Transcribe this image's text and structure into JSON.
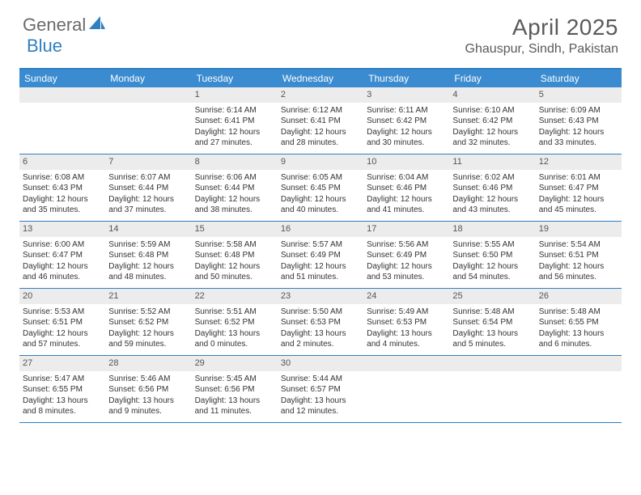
{
  "logo": {
    "text_general": "General",
    "text_blue": "Blue"
  },
  "title": "April 2025",
  "location": "Ghauspur, Sindh, Pakistan",
  "colors": {
    "header_bar": "#3a8bd0",
    "border": "#2f7fc2",
    "daynum_bg": "#ececec",
    "text": "#333333",
    "logo_gray": "#6a6a6a",
    "logo_blue": "#2f7fc2"
  },
  "days_of_week": [
    "Sunday",
    "Monday",
    "Tuesday",
    "Wednesday",
    "Thursday",
    "Friday",
    "Saturday"
  ],
  "weeks": [
    [
      {
        "n": "",
        "sr": "",
        "ss": "",
        "dl": ""
      },
      {
        "n": "",
        "sr": "",
        "ss": "",
        "dl": ""
      },
      {
        "n": "1",
        "sr": "Sunrise: 6:14 AM",
        "ss": "Sunset: 6:41 PM",
        "dl": "Daylight: 12 hours and 27 minutes."
      },
      {
        "n": "2",
        "sr": "Sunrise: 6:12 AM",
        "ss": "Sunset: 6:41 PM",
        "dl": "Daylight: 12 hours and 28 minutes."
      },
      {
        "n": "3",
        "sr": "Sunrise: 6:11 AM",
        "ss": "Sunset: 6:42 PM",
        "dl": "Daylight: 12 hours and 30 minutes."
      },
      {
        "n": "4",
        "sr": "Sunrise: 6:10 AM",
        "ss": "Sunset: 6:42 PM",
        "dl": "Daylight: 12 hours and 32 minutes."
      },
      {
        "n": "5",
        "sr": "Sunrise: 6:09 AM",
        "ss": "Sunset: 6:43 PM",
        "dl": "Daylight: 12 hours and 33 minutes."
      }
    ],
    [
      {
        "n": "6",
        "sr": "Sunrise: 6:08 AM",
        "ss": "Sunset: 6:43 PM",
        "dl": "Daylight: 12 hours and 35 minutes."
      },
      {
        "n": "7",
        "sr": "Sunrise: 6:07 AM",
        "ss": "Sunset: 6:44 PM",
        "dl": "Daylight: 12 hours and 37 minutes."
      },
      {
        "n": "8",
        "sr": "Sunrise: 6:06 AM",
        "ss": "Sunset: 6:44 PM",
        "dl": "Daylight: 12 hours and 38 minutes."
      },
      {
        "n": "9",
        "sr": "Sunrise: 6:05 AM",
        "ss": "Sunset: 6:45 PM",
        "dl": "Daylight: 12 hours and 40 minutes."
      },
      {
        "n": "10",
        "sr": "Sunrise: 6:04 AM",
        "ss": "Sunset: 6:46 PM",
        "dl": "Daylight: 12 hours and 41 minutes."
      },
      {
        "n": "11",
        "sr": "Sunrise: 6:02 AM",
        "ss": "Sunset: 6:46 PM",
        "dl": "Daylight: 12 hours and 43 minutes."
      },
      {
        "n": "12",
        "sr": "Sunrise: 6:01 AM",
        "ss": "Sunset: 6:47 PM",
        "dl": "Daylight: 12 hours and 45 minutes."
      }
    ],
    [
      {
        "n": "13",
        "sr": "Sunrise: 6:00 AM",
        "ss": "Sunset: 6:47 PM",
        "dl": "Daylight: 12 hours and 46 minutes."
      },
      {
        "n": "14",
        "sr": "Sunrise: 5:59 AM",
        "ss": "Sunset: 6:48 PM",
        "dl": "Daylight: 12 hours and 48 minutes."
      },
      {
        "n": "15",
        "sr": "Sunrise: 5:58 AM",
        "ss": "Sunset: 6:48 PM",
        "dl": "Daylight: 12 hours and 50 minutes."
      },
      {
        "n": "16",
        "sr": "Sunrise: 5:57 AM",
        "ss": "Sunset: 6:49 PM",
        "dl": "Daylight: 12 hours and 51 minutes."
      },
      {
        "n": "17",
        "sr": "Sunrise: 5:56 AM",
        "ss": "Sunset: 6:49 PM",
        "dl": "Daylight: 12 hours and 53 minutes."
      },
      {
        "n": "18",
        "sr": "Sunrise: 5:55 AM",
        "ss": "Sunset: 6:50 PM",
        "dl": "Daylight: 12 hours and 54 minutes."
      },
      {
        "n": "19",
        "sr": "Sunrise: 5:54 AM",
        "ss": "Sunset: 6:51 PM",
        "dl": "Daylight: 12 hours and 56 minutes."
      }
    ],
    [
      {
        "n": "20",
        "sr": "Sunrise: 5:53 AM",
        "ss": "Sunset: 6:51 PM",
        "dl": "Daylight: 12 hours and 57 minutes."
      },
      {
        "n": "21",
        "sr": "Sunrise: 5:52 AM",
        "ss": "Sunset: 6:52 PM",
        "dl": "Daylight: 12 hours and 59 minutes."
      },
      {
        "n": "22",
        "sr": "Sunrise: 5:51 AM",
        "ss": "Sunset: 6:52 PM",
        "dl": "Daylight: 13 hours and 0 minutes."
      },
      {
        "n": "23",
        "sr": "Sunrise: 5:50 AM",
        "ss": "Sunset: 6:53 PM",
        "dl": "Daylight: 13 hours and 2 minutes."
      },
      {
        "n": "24",
        "sr": "Sunrise: 5:49 AM",
        "ss": "Sunset: 6:53 PM",
        "dl": "Daylight: 13 hours and 4 minutes."
      },
      {
        "n": "25",
        "sr": "Sunrise: 5:48 AM",
        "ss": "Sunset: 6:54 PM",
        "dl": "Daylight: 13 hours and 5 minutes."
      },
      {
        "n": "26",
        "sr": "Sunrise: 5:48 AM",
        "ss": "Sunset: 6:55 PM",
        "dl": "Daylight: 13 hours and 6 minutes."
      }
    ],
    [
      {
        "n": "27",
        "sr": "Sunrise: 5:47 AM",
        "ss": "Sunset: 6:55 PM",
        "dl": "Daylight: 13 hours and 8 minutes."
      },
      {
        "n": "28",
        "sr": "Sunrise: 5:46 AM",
        "ss": "Sunset: 6:56 PM",
        "dl": "Daylight: 13 hours and 9 minutes."
      },
      {
        "n": "29",
        "sr": "Sunrise: 5:45 AM",
        "ss": "Sunset: 6:56 PM",
        "dl": "Daylight: 13 hours and 11 minutes."
      },
      {
        "n": "30",
        "sr": "Sunrise: 5:44 AM",
        "ss": "Sunset: 6:57 PM",
        "dl": "Daylight: 13 hours and 12 minutes."
      },
      {
        "n": "",
        "sr": "",
        "ss": "",
        "dl": ""
      },
      {
        "n": "",
        "sr": "",
        "ss": "",
        "dl": ""
      },
      {
        "n": "",
        "sr": "",
        "ss": "",
        "dl": ""
      }
    ]
  ]
}
